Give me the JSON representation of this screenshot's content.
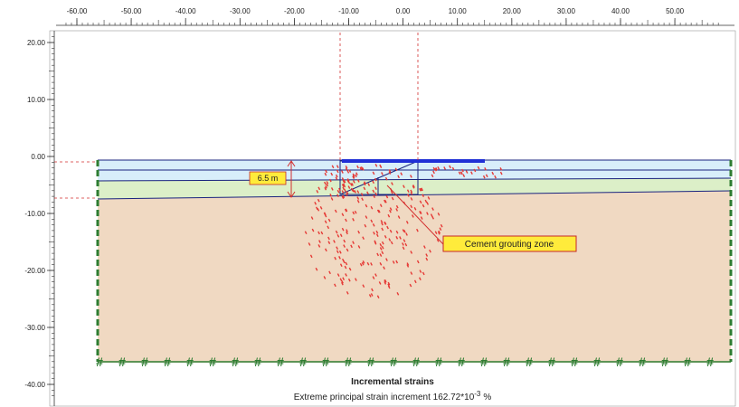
{
  "x_axis": {
    "ticks": [
      {
        "value": -60,
        "label": "-60.00"
      },
      {
        "value": -50,
        "label": "-50.00"
      },
      {
        "value": -40,
        "label": "-40.00"
      },
      {
        "value": -30,
        "label": "-30.00"
      },
      {
        "value": -20,
        "label": "-20.00"
      },
      {
        "value": -10,
        "label": "-10.00"
      },
      {
        "value": 0,
        "label": "0.00"
      },
      {
        "value": 10,
        "label": "10.00"
      },
      {
        "value": 20,
        "label": "20.00"
      },
      {
        "value": 30,
        "label": "30.00"
      },
      {
        "value": 40,
        "label": "40.00"
      },
      {
        "value": 50,
        "label": "50.00"
      }
    ]
  },
  "y_axis": {
    "ticks": [
      {
        "value": 20,
        "label": "20.00"
      },
      {
        "value": 10,
        "label": "10.00"
      },
      {
        "value": 0,
        "label": "0.00"
      },
      {
        "value": -10,
        "label": "-10.00"
      },
      {
        "value": -20,
        "label": "-20.00"
      },
      {
        "value": -30,
        "label": "-30.00"
      },
      {
        "value": -40,
        "label": "-40.00"
      }
    ]
  },
  "annotations": {
    "depth": "6.5 m",
    "zone": "Cement grouting zone"
  },
  "caption": {
    "title": "Incremental strains",
    "text": "Extreme principal strain increment 162.72*10",
    "exponent": "-3",
    "unit": "%"
  }
}
